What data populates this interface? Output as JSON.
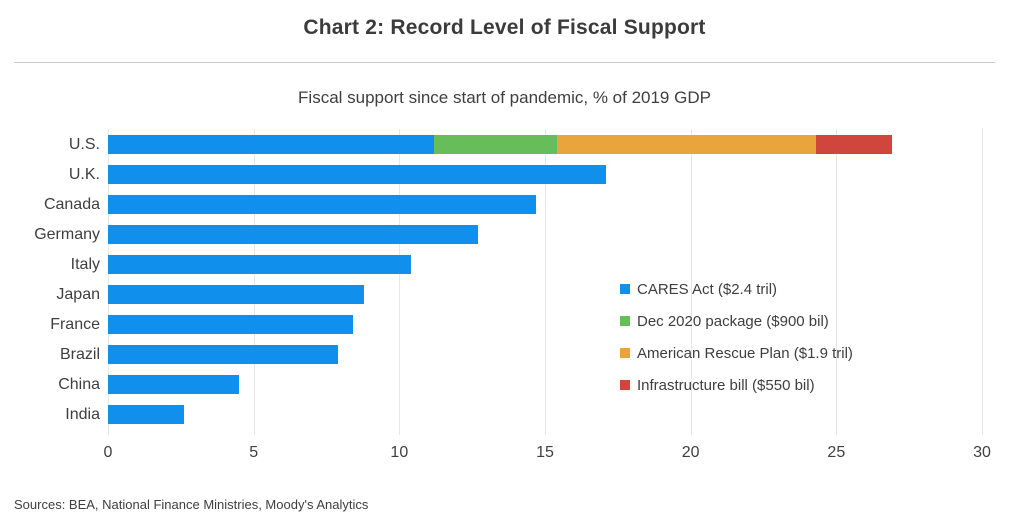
{
  "title": "Chart 2: Record Level of Fiscal Support",
  "subtitle": "Fiscal support since start of pandemic, % of 2019 GDP",
  "source_note": "Sources: BEA, National Finance Ministries, Moody's Analytics",
  "colors": {
    "cares_blue": "#1090ec",
    "dec_green": "#67bd59",
    "arp_orange": "#e9a43b",
    "infra_red": "#d0463c",
    "grid": "#e7e7e7",
    "divider": "#c9c9c9",
    "text": "#3f3f3f"
  },
  "chart_data": {
    "type": "bar",
    "orientation": "horizontal",
    "stacked": true,
    "title": "Chart 2: Record Level of Fiscal Support",
    "subtitle": "Fiscal support since start of pandemic, % of 2019 GDP",
    "xlabel": "",
    "ylabel": "",
    "xlim": [
      0,
      30
    ],
    "x_ticks": [
      0,
      5,
      10,
      15,
      20,
      25,
      30
    ],
    "grid": true,
    "legend_position": "center-right",
    "categories": [
      "U.S.",
      "U.K.",
      "Canada",
      "Germany",
      "Italy",
      "Japan",
      "France",
      "Brazil",
      "China",
      "India"
    ],
    "series": [
      {
        "name": "CARES Act ($2.4 tril)",
        "color": "#1090ec",
        "values": [
          11.2,
          17.1,
          14.7,
          12.7,
          10.4,
          8.8,
          8.4,
          7.9,
          4.5,
          2.6
        ]
      },
      {
        "name": "Dec 2020 package ($900 bil)",
        "color": "#67bd59",
        "values": [
          4.2,
          0,
          0,
          0,
          0,
          0,
          0,
          0,
          0,
          0
        ]
      },
      {
        "name": "American Rescue Plan ($1.9 tril)",
        "color": "#e9a43b",
        "values": [
          8.9,
          0,
          0,
          0,
          0,
          0,
          0,
          0,
          0,
          0
        ]
      },
      {
        "name": "Infrastructure bill ($550 bil)",
        "color": "#d0463c",
        "values": [
          2.6,
          0,
          0,
          0,
          0,
          0,
          0,
          0,
          0,
          0
        ]
      }
    ],
    "totals": [
      26.9,
      17.1,
      14.7,
      12.7,
      10.4,
      8.8,
      8.4,
      7.9,
      4.5,
      2.6
    ]
  }
}
